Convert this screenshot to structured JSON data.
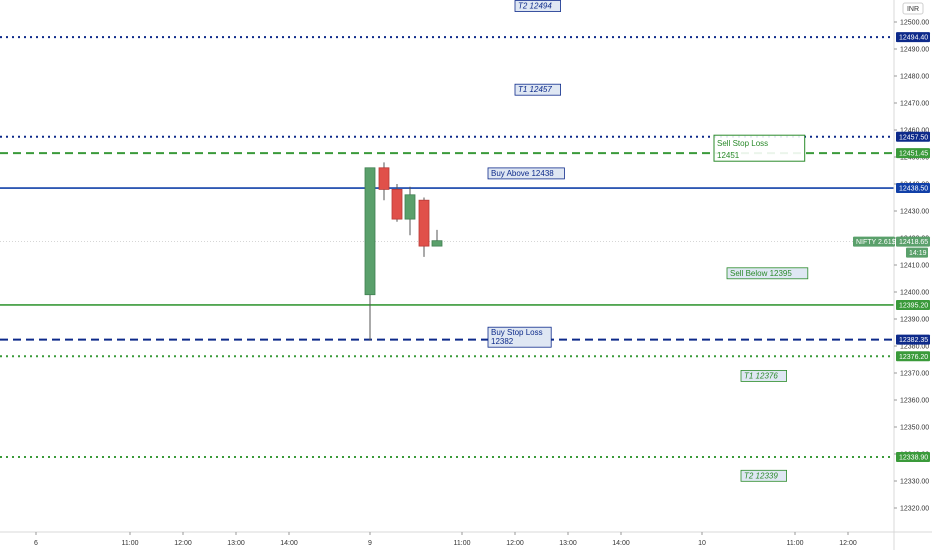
{
  "chart_data": {
    "type": "candlestick",
    "currency": "INR",
    "ylim": [
      12310,
      12505
    ],
    "y_ticks": [
      12320,
      12330,
      12340,
      12350,
      12360,
      12370,
      12380,
      12390,
      12400,
      12410,
      12420,
      12430,
      12440,
      12450,
      12460,
      12470,
      12480,
      12490,
      12500
    ],
    "x_ticks": [
      "6",
      "11:00",
      "12:00",
      "13:00",
      "14:00",
      "9",
      "11:00",
      "12:00",
      "13:00",
      "14:00",
      "10",
      "11:00",
      "12:00"
    ],
    "candles": [
      {
        "open": 12399,
        "high": 12445,
        "low": 12382,
        "close": 12446,
        "color": "green"
      },
      {
        "open": 12446,
        "high": 12448,
        "low": 12434,
        "close": 12438,
        "color": "red"
      },
      {
        "open": 12438,
        "high": 12440,
        "low": 12426,
        "close": 12427,
        "color": "red"
      },
      {
        "open": 12427,
        "high": 12439,
        "low": 12421,
        "close": 12436,
        "color": "green"
      },
      {
        "open": 12434,
        "high": 12435,
        "low": 12413,
        "close": 12417,
        "color": "red"
      },
      {
        "open": 12417,
        "high": 12423,
        "low": 12417,
        "close": 12419,
        "color": "green"
      }
    ],
    "levels": [
      {
        "value": 12494.4,
        "label": "12494.40",
        "color": "#0d2a8a",
        "style": "dotted"
      },
      {
        "value": 12457.5,
        "label": "12457.50",
        "color": "#0d2a8a",
        "style": "dotted"
      },
      {
        "value": 12451.45,
        "label": "12451.45",
        "color": "#3a9a3a",
        "style": "dashed"
      },
      {
        "value": 12438.5,
        "label": "12438.50",
        "color": "#1140a8",
        "style": "solid"
      },
      {
        "value": 12395.2,
        "label": "12395.20",
        "color": "#3a9a3a",
        "style": "solid"
      },
      {
        "value": 12382.35,
        "label": "12382.35",
        "color": "#0d2a8a",
        "style": "dashed"
      },
      {
        "value": 12376.2,
        "label": "12376.20",
        "color": "#3a9a3a",
        "style": "dotted"
      },
      {
        "value": 12338.9,
        "label": "12338.90",
        "color": "#3a9a3a",
        "style": "dotted"
      }
    ],
    "last_price": {
      "value": 12418.65,
      "label": "12418.65",
      "symbol_label": "NIFTY 2.61$",
      "time_label": "14:19",
      "color": "#5aa06b"
    },
    "annotations": [
      {
        "text": "T2  12494",
        "value": 12505,
        "color": "#0d2a8a",
        "italic": true
      },
      {
        "text": "T1  12457",
        "value": 12474,
        "color": "#0d2a8a",
        "italic": true
      },
      {
        "text": "Buy Above  12438",
        "value": 12443,
        "color": "#0d2a8a",
        "italic": false
      },
      {
        "text": "Sell Stop Loss",
        "text2": "12451",
        "value": 12454,
        "color": "#2a8a2a",
        "italic": false,
        "large": true
      },
      {
        "text": "Sell Below  12395",
        "value": 12406,
        "color": "#2a8a2a",
        "italic": false
      },
      {
        "text": "Buy Stop Loss",
        "text2": "12382",
        "value": 12384,
        "color": "#0d2a8a",
        "italic": false
      },
      {
        "text": "T1  12376",
        "value": 12368,
        "color": "#2a8a2a",
        "italic": true
      },
      {
        "text": "T2  12339",
        "value": 12331,
        "color": "#2a8a2a",
        "italic": true
      }
    ]
  }
}
